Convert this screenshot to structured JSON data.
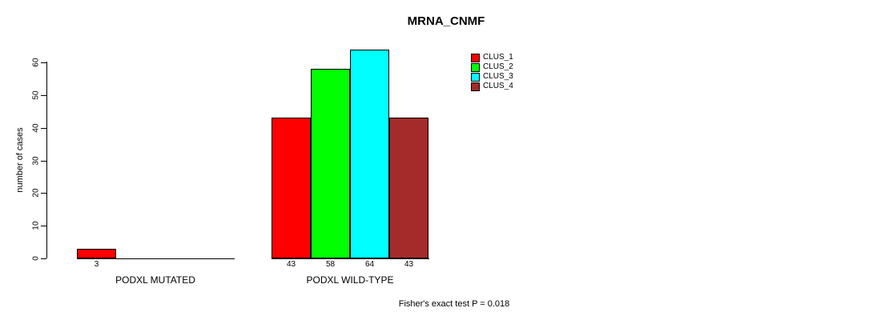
{
  "chart_data": {
    "type": "bar",
    "title": "MRNA_CNMF",
    "ylabel": "number of cases",
    "ylim": [
      0,
      60
    ],
    "yticks": [
      0,
      10,
      20,
      30,
      40,
      50,
      60
    ],
    "grid": false,
    "legend_position": "top-right",
    "series": [
      {
        "name": "CLUS_1",
        "color": "#ff0000"
      },
      {
        "name": "CLUS_2",
        "color": "#00ff00"
      },
      {
        "name": "CLUS_3",
        "color": "#00ffff"
      },
      {
        "name": "CLUS_4",
        "color": "#a52a2a"
      }
    ],
    "groups": [
      {
        "label": "PODXL MUTATED",
        "values": [
          3,
          0,
          0,
          0
        ]
      },
      {
        "label": "PODXL WILD-TYPE",
        "values": [
          43,
          58,
          64,
          43
        ]
      }
    ],
    "annotation": "Fisher's exact test P = 0.018"
  }
}
